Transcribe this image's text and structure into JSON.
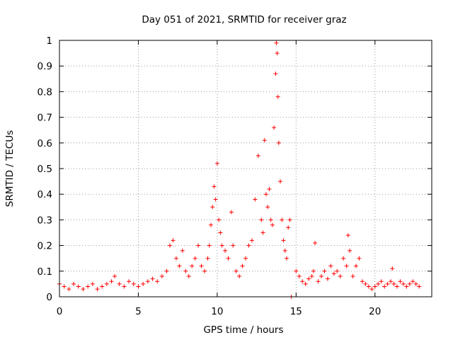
{
  "chart_data": {
    "type": "scatter",
    "title": "Day 051 of 2021, SRMTID for receiver graz",
    "xlabel": "GPS time / hours",
    "ylabel": "SRMTID / TECUs",
    "xlim": [
      0,
      23.6
    ],
    "ylim": [
      0,
      1
    ],
    "xticks": [
      0,
      5,
      10,
      15,
      20
    ],
    "xtick_labels": [
      "0",
      "5",
      "10",
      "15",
      "20"
    ],
    "yticks": [
      0,
      0.1,
      0.2,
      0.3,
      0.4,
      0.5,
      0.6,
      0.7,
      0.8,
      0.9,
      1
    ],
    "ytick_labels": [
      "0",
      "0.1",
      "0.2",
      "0.3",
      "0.4",
      "0.5",
      "0.6",
      "0.7",
      "0.8",
      "0.9",
      "1"
    ],
    "grid": true,
    "marker": "plus",
    "color": "#ff0000",
    "series": [
      {
        "name": "SRMTID",
        "x": [
          0.0,
          0.3,
          0.6,
          0.9,
          1.2,
          1.5,
          1.8,
          2.1,
          2.4,
          2.7,
          3.0,
          3.3,
          3.5,
          3.8,
          4.1,
          4.4,
          4.7,
          5.0,
          5.3,
          5.6,
          5.9,
          6.2,
          6.5,
          6.8,
          7.0,
          7.2,
          7.4,
          7.6,
          7.8,
          8.0,
          8.2,
          8.4,
          8.6,
          8.8,
          9.0,
          9.2,
          9.4,
          9.5,
          9.6,
          9.7,
          9.8,
          9.9,
          10.0,
          10.1,
          10.2,
          10.3,
          10.5,
          10.7,
          10.9,
          11.0,
          11.2,
          11.4,
          11.6,
          11.8,
          12.0,
          12.2,
          12.4,
          12.6,
          12.8,
          12.9,
          13.0,
          13.1,
          13.2,
          13.3,
          13.4,
          13.5,
          13.6,
          13.7,
          13.75,
          13.8,
          13.85,
          13.9,
          14.0,
          14.1,
          14.2,
          14.3,
          14.4,
          14.5,
          14.6,
          14.7,
          15.0,
          15.2,
          15.4,
          15.6,
          15.8,
          16.0,
          16.1,
          16.2,
          16.4,
          16.6,
          16.8,
          17.0,
          17.2,
          17.4,
          17.6,
          17.8,
          18.0,
          18.2,
          18.3,
          18.4,
          18.6,
          18.8,
          19.0,
          19.2,
          19.4,
          19.6,
          19.8,
          20.0,
          20.2,
          20.4,
          20.6,
          20.8,
          21.0,
          21.1,
          21.2,
          21.4,
          21.6,
          21.8,
          22.0,
          22.2,
          22.4,
          22.6,
          22.8
        ],
        "y": [
          0.05,
          0.04,
          0.03,
          0.05,
          0.04,
          0.03,
          0.04,
          0.05,
          0.03,
          0.04,
          0.05,
          0.06,
          0.08,
          0.05,
          0.04,
          0.06,
          0.05,
          0.04,
          0.05,
          0.06,
          0.07,
          0.06,
          0.08,
          0.1,
          0.2,
          0.22,
          0.15,
          0.12,
          0.18,
          0.1,
          0.08,
          0.12,
          0.15,
          0.2,
          0.12,
          0.1,
          0.15,
          0.2,
          0.28,
          0.35,
          0.43,
          0.38,
          0.52,
          0.3,
          0.25,
          0.2,
          0.18,
          0.15,
          0.33,
          0.2,
          0.1,
          0.08,
          0.12,
          0.15,
          0.2,
          0.22,
          0.38,
          0.55,
          0.3,
          0.25,
          0.61,
          0.4,
          0.35,
          0.42,
          0.3,
          0.28,
          0.66,
          0.87,
          0.99,
          0.95,
          0.78,
          0.6,
          0.45,
          0.3,
          0.22,
          0.18,
          0.15,
          0.27,
          0.3,
          0.0,
          0.1,
          0.08,
          0.06,
          0.05,
          0.07,
          0.08,
          0.1,
          0.21,
          0.06,
          0.08,
          0.1,
          0.07,
          0.12,
          0.09,
          0.1,
          0.08,
          0.15,
          0.12,
          0.24,
          0.18,
          0.08,
          0.12,
          0.15,
          0.06,
          0.05,
          0.04,
          0.03,
          0.04,
          0.05,
          0.06,
          0.04,
          0.05,
          0.06,
          0.11,
          0.05,
          0.04,
          0.06,
          0.05,
          0.04,
          0.05,
          0.06,
          0.05,
          0.04
        ]
      }
    ]
  }
}
